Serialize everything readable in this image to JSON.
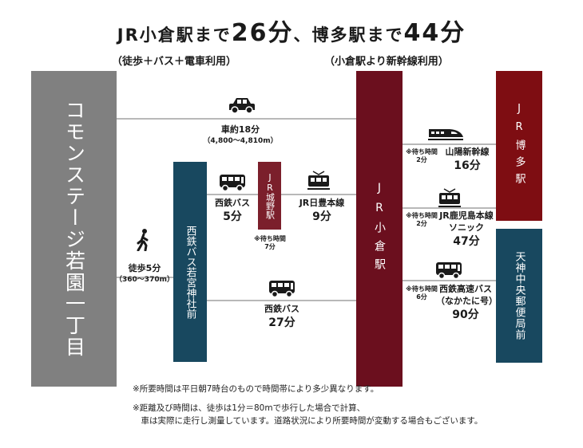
{
  "title": {
    "prefix": "JR小倉駅まで",
    "time1": "26分",
    "middle": "、博多駅まで",
    "time2": "44分"
  },
  "subtitles": {
    "left": "（徒歩＋バス＋電車利用）",
    "right": "（小倉駅より新幹線利用）"
  },
  "stations": {
    "origin": "コモンステージ若園一丁目",
    "bus_stop": "西鉄バス若宮神社前",
    "jojo": "JR城野駅",
    "kokura": "JR小倉駅",
    "hakata": "JR博多駅",
    "tenjin": "天神中央郵便局前"
  },
  "routes": {
    "car": {
      "label": "車約18分",
      "sub": "（4,800〜4,810m）"
    },
    "walk": {
      "label": "徒歩5分",
      "sub": "（360〜370m）"
    },
    "bus1": {
      "name": "西鉄バス",
      "time": "5分"
    },
    "wait_jojo": {
      "line1": "※待ち時間",
      "line2": "7分"
    },
    "nippo": {
      "name": "JR日豊本線",
      "time": "9分"
    },
    "bus2": {
      "name": "西鉄バス",
      "time": "27分"
    },
    "shinkansen": {
      "wait1": "※待ち時間",
      "wait2": "2分",
      "name": "山陽新幹線",
      "time": "16分"
    },
    "sonic": {
      "wait1": "※待ち時間",
      "wait2": "2分",
      "name1": "JR鹿児島本線",
      "name2": "ソニック",
      "time": "47分"
    },
    "express_bus": {
      "wait1": "※待ち時間",
      "wait2": "6分",
      "name1": "西鉄高速バス",
      "name2": "（なかたに号）",
      "time": "90分"
    }
  },
  "notes": {
    "note1": "※所要時間は平日朝7時台のもので時間帯により多少異なります。",
    "note2a": "※距離及び時間は、徒歩は1分＝80mで歩行した場合で計算、",
    "note2b": "　車は実際に走行し測量しています。道路状況により所要時間が変動する場合もございます。"
  },
  "colors": {
    "origin": "#808080",
    "bus_stop": "#18485f",
    "jojo": "#7b1f2b",
    "kokura": "#6b0f1e",
    "hakata": "#7e0d12",
    "tenjin": "#18485f",
    "line": "#b8b8b8"
  },
  "icons": [
    "car-icon",
    "walker-icon",
    "bus-icon",
    "train-icon",
    "shinkansen-icon"
  ]
}
